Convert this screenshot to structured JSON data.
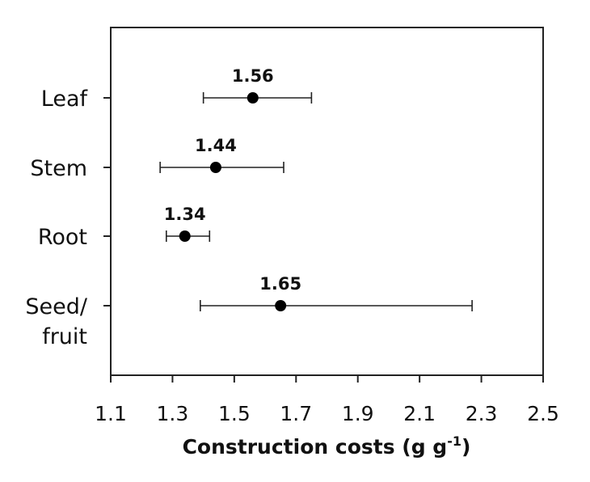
{
  "chart_data": {
    "type": "scatter",
    "orientation": "horizontal",
    "error_bars": true,
    "categories": [
      {
        "label_lines": [
          "Leaf"
        ],
        "value": 1.56,
        "value_label": "1.56",
        "err_low": 1.4,
        "err_high": 1.75
      },
      {
        "label_lines": [
          "Stem"
        ],
        "value": 1.44,
        "value_label": "1.44",
        "err_low": 1.26,
        "err_high": 1.66
      },
      {
        "label_lines": [
          "Root"
        ],
        "value": 1.34,
        "value_label": "1.34",
        "err_low": 1.28,
        "err_high": 1.42
      },
      {
        "label_lines": [
          "Seed/",
          "fruit"
        ],
        "value": 1.65,
        "value_label": "1.65",
        "err_low": 1.39,
        "err_high": 2.27
      }
    ],
    "xlabel": "Construction costs (g g",
    "xlabel_superscript": "-1",
    "xlabel_suffix": ")",
    "xlim": [
      1.1,
      2.5
    ],
    "xticks": [
      "1.1",
      "1.3",
      "1.5",
      "1.7",
      "1.9",
      "2.1",
      "2.3",
      "2.5"
    ],
    "grid": false,
    "legend": "none",
    "colors": {
      "marker": "#000000",
      "line": "#222222",
      "text": "#111111"
    }
  }
}
